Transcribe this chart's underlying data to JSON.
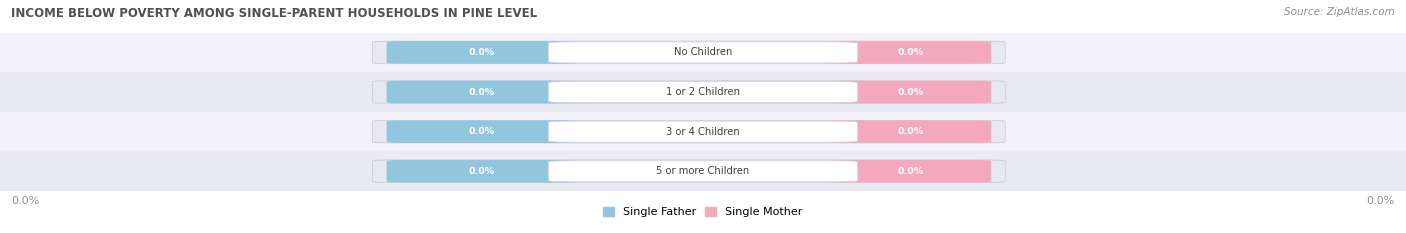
{
  "title": "INCOME BELOW POVERTY AMONG SINGLE-PARENT HOUSEHOLDS IN PINE LEVEL",
  "source": "Source: ZipAtlas.com",
  "categories": [
    "No Children",
    "1 or 2 Children",
    "3 or 4 Children",
    "5 or more Children"
  ],
  "father_values": [
    0.0,
    0.0,
    0.0,
    0.0
  ],
  "mother_values": [
    0.0,
    0.0,
    0.0,
    0.0
  ],
  "father_color": "#92C5DE",
  "mother_color": "#F4A8BB",
  "bar_bg_color": "#E8E8F0",
  "bar_bg_edge_color": "#CCCCDD",
  "title_color": "#505050",
  "source_color": "#909090",
  "background_color": "#FFFFFF",
  "row_colors": [
    "#F2F2F8",
    "#EAEAF2"
  ],
  "axis_label_color": "#909090",
  "legend_father": "Single Father",
  "legend_mother": "Single Mother",
  "figsize": [
    14.06,
    2.33
  ],
  "dpi": 100
}
